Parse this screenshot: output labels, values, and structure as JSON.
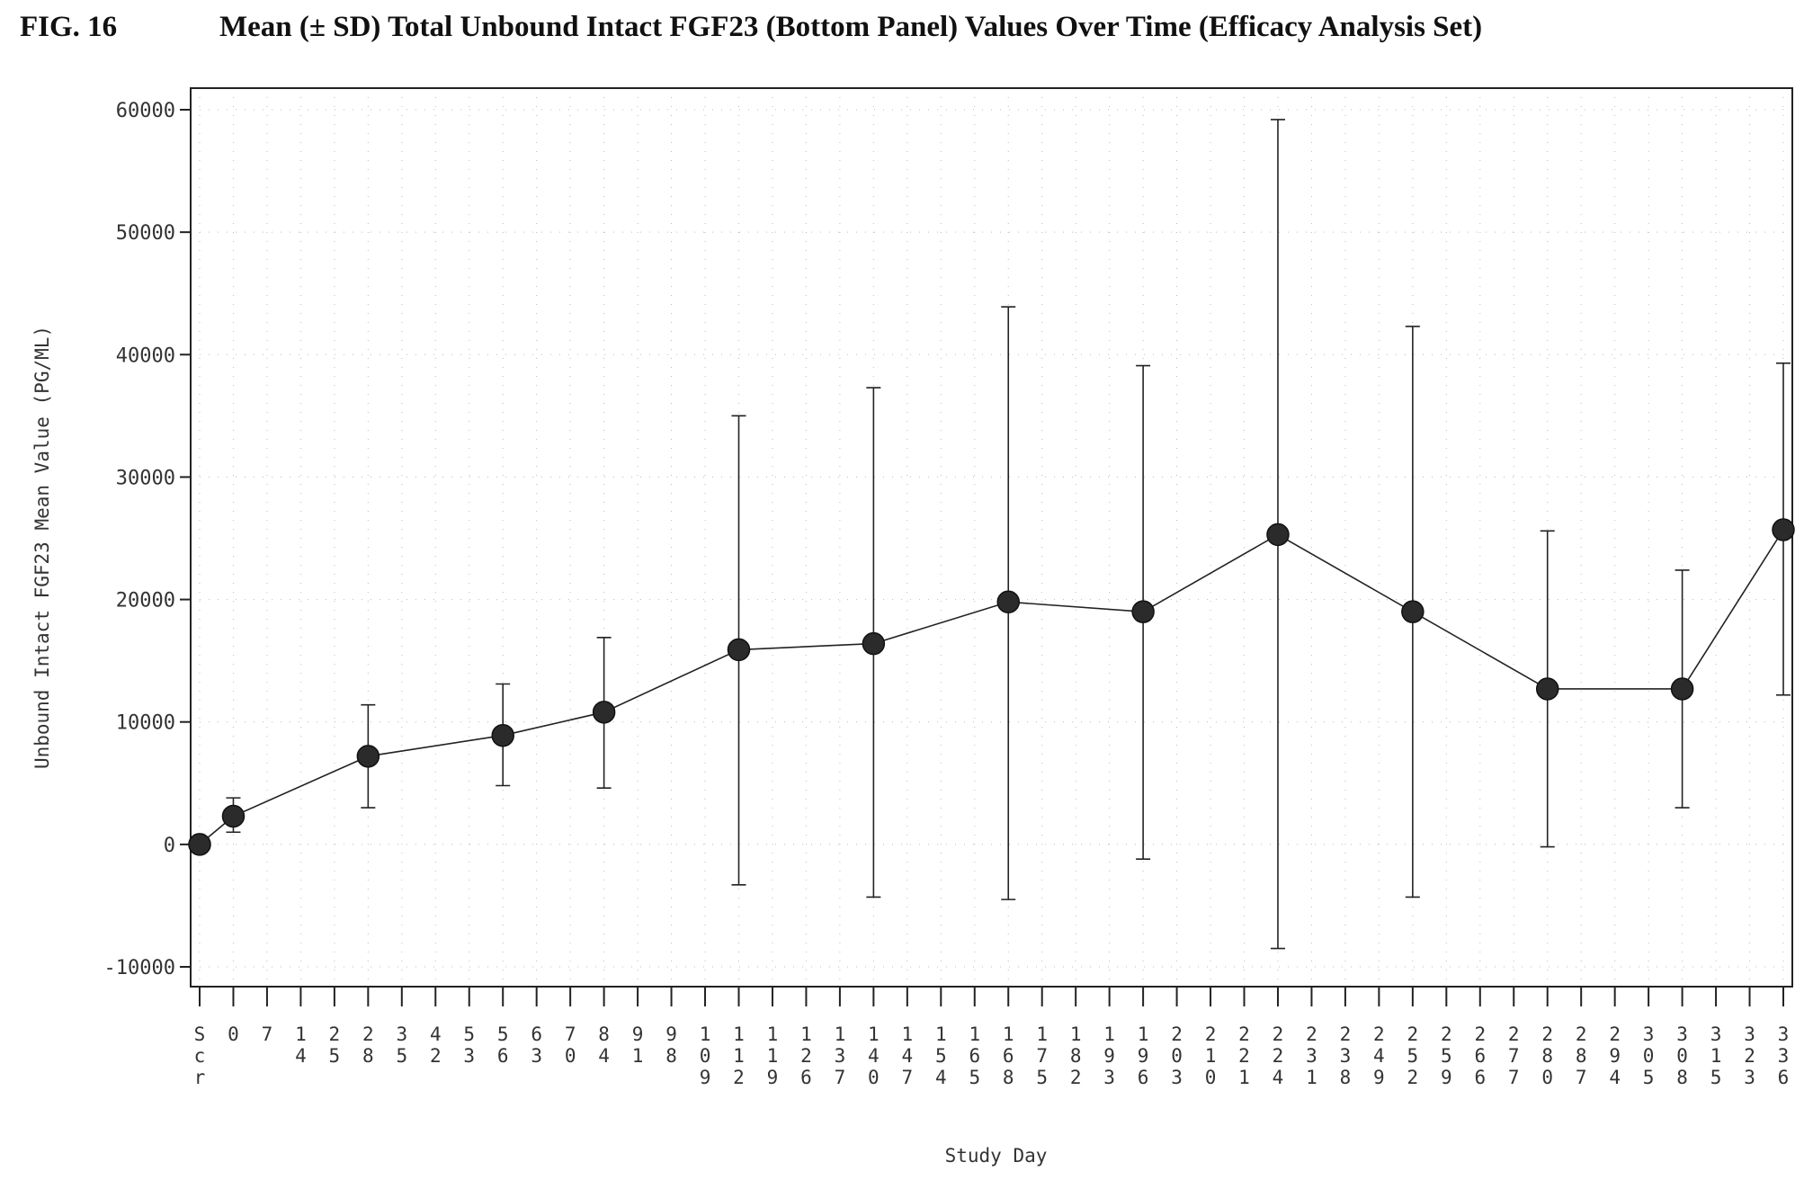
{
  "figure": {
    "label": "FIG. 16",
    "title": "Mean (± SD)  Total Unbound Intact FGF23 (Bottom Panel) Values Over Time (Efficacy Analysis Set)"
  },
  "chart_data": {
    "type": "line",
    "xlabel": "Study Day",
    "ylabel": "Unbound Intact FGF23 Mean Value (PG/ML)",
    "ylim": [
      -10000,
      60000
    ],
    "y_ticks": [
      -10000,
      0,
      10000,
      20000,
      30000,
      40000,
      50000,
      60000
    ],
    "y_tick_labels": [
      "-10000",
      "0",
      "10000",
      "20000",
      "30000",
      "40000",
      "50000",
      "60000"
    ],
    "categories": [
      "Scr",
      "0",
      "7",
      "14",
      "25",
      "28",
      "35",
      "42",
      "53",
      "56",
      "63",
      "70",
      "84",
      "91",
      "98",
      "109",
      "112",
      "119",
      "126",
      "137",
      "140",
      "147",
      "154",
      "165",
      "168",
      "175",
      "182",
      "193",
      "196",
      "203",
      "210",
      "221",
      "224",
      "231",
      "238",
      "249",
      "252",
      "259",
      "266",
      "277",
      "280",
      "287",
      "294",
      "305",
      "308",
      "315",
      "323",
      "336"
    ],
    "grid": "dotted",
    "legend": "none",
    "series": [
      {
        "marker": "filled circle",
        "color": "#222222",
        "points": [
          {
            "x": "Scr",
            "mean": 0,
            "sd_low": null,
            "sd_high": null
          },
          {
            "x": "0",
            "mean": 2300,
            "sd_low": 1000,
            "sd_high": 3800
          },
          {
            "x": "28",
            "mean": 7200,
            "sd_low": 3000,
            "sd_high": 11400
          },
          {
            "x": "56",
            "mean": 8900,
            "sd_low": 4800,
            "sd_high": 13100
          },
          {
            "x": "84",
            "mean": 10800,
            "sd_low": 4600,
            "sd_high": 16900
          },
          {
            "x": "112",
            "mean": 15900,
            "sd_low": -3300,
            "sd_high": 35000
          },
          {
            "x": "140",
            "mean": 16400,
            "sd_low": -4300,
            "sd_high": 37300
          },
          {
            "x": "168",
            "mean": 19800,
            "sd_low": -4500,
            "sd_high": 43900
          },
          {
            "x": "196",
            "mean": 19000,
            "sd_low": -1200,
            "sd_high": 39100
          },
          {
            "x": "224",
            "mean": 25300,
            "sd_low": -8500,
            "sd_high": 59200
          },
          {
            "x": "252",
            "mean": 19000,
            "sd_low": -4300,
            "sd_high": 42300
          },
          {
            "x": "280",
            "mean": 12700,
            "sd_low": -200,
            "sd_high": 25600
          },
          {
            "x": "308",
            "mean": 12700,
            "sd_low": 3000,
            "sd_high": 22400
          },
          {
            "x": "336",
            "mean": 25700,
            "sd_low": 12200,
            "sd_high": 39300
          }
        ]
      }
    ]
  }
}
